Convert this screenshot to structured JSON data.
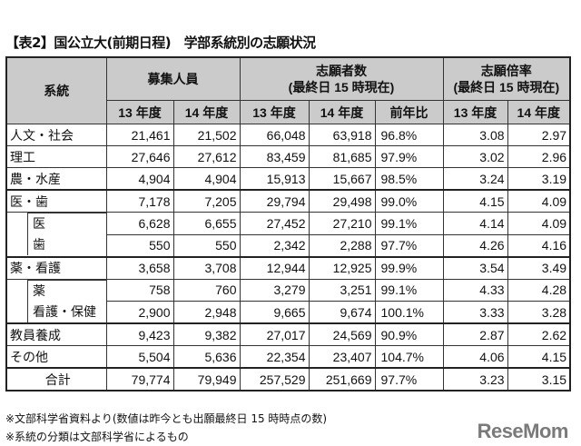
{
  "title": "【表2】国公立大(前期日程)　学部系統別の志願状況",
  "headers": {
    "category": "系統",
    "capacity": "募集人員",
    "applicants": "志願者数",
    "applicants_sub": "(最終日 15 時現在)",
    "ratio": "志願倍率",
    "ratio_sub": "(最終日 15 時現在)",
    "y13": "13 年度",
    "y14": "14 年度",
    "yoy": "前年比"
  },
  "rows": [
    {
      "label": "人文・社会",
      "v": [
        "21,461",
        "21,502",
        "66,048",
        "63,918",
        "96.8%",
        "3.08",
        "2.97"
      ]
    },
    {
      "label": "理工",
      "v": [
        "27,646",
        "27,612",
        "83,459",
        "81,685",
        "97.9%",
        "3.02",
        "2.96"
      ]
    },
    {
      "label": "農・水産",
      "v": [
        "4,904",
        "4,904",
        "15,913",
        "15,667",
        "98.5%",
        "3.24",
        "3.19"
      ]
    },
    {
      "label": "医・歯",
      "v": [
        "7,178",
        "7,205",
        "29,794",
        "29,498",
        "99.0%",
        "4.15",
        "4.09"
      ]
    },
    {
      "label": "医",
      "v": [
        "6,628",
        "6,655",
        "27,452",
        "27,210",
        "99.1%",
        "4.14",
        "4.09"
      ]
    },
    {
      "label": "歯",
      "v": [
        "550",
        "550",
        "2,342",
        "2,288",
        "97.7%",
        "4.26",
        "4.16"
      ]
    },
    {
      "label": "薬・看護",
      "v": [
        "3,658",
        "3,708",
        "12,944",
        "12,925",
        "99.9%",
        "3.54",
        "3.49"
      ]
    },
    {
      "label": "薬",
      "v": [
        "758",
        "760",
        "3,279",
        "3,251",
        "99.1%",
        "4.33",
        "4.28"
      ]
    },
    {
      "label": "看護・保健",
      "v": [
        "2,900",
        "2,948",
        "9,665",
        "9,674",
        "100.1%",
        "3.33",
        "3.28"
      ]
    },
    {
      "label": "教員養成",
      "v": [
        "9,423",
        "9,382",
        "27,017",
        "24,569",
        "90.9%",
        "2.87",
        "2.62"
      ]
    },
    {
      "label": "その他",
      "v": [
        "5,504",
        "5,636",
        "22,354",
        "23,407",
        "104.7%",
        "4.06",
        "4.15"
      ]
    },
    {
      "label": "合計",
      "v": [
        "79,774",
        "79,949",
        "257,529",
        "251,669",
        "97.7%",
        "3.23",
        "3.15"
      ]
    }
  ],
  "notes": [
    "※文部科学省資料より(数値は昨今とも出願最終日 15 時時点の数)",
    "※系統の分類は文部科学省によるもの"
  ],
  "logo": "ReseMom"
}
